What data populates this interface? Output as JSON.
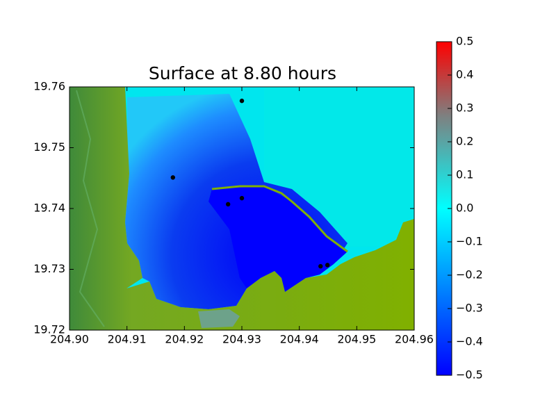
{
  "chart_data": {
    "type": "scatter",
    "title": "Surface at 8.80 hours",
    "x": [
      204.93,
      204.918,
      204.9276,
      204.93,
      204.9437,
      204.9449
    ],
    "values": [
      19.7577,
      19.7451,
      19.7407,
      19.7417,
      19.7305,
      19.7307
    ],
    "color": "#000000",
    "xlim": [
      204.9,
      204.96
    ],
    "xticks": [
      {
        "value": 204.9,
        "label": "204.90"
      },
      204.91,
      204.92,
      204.93,
      204.94,
      204.95,
      204.96
    ],
    "ylim": [
      19.72,
      19.76
    ],
    "yticks": [
      19.72,
      19.73,
      19.74,
      19.75,
      19.76
    ],
    "clim": [
      -0.5,
      0.5
    ],
    "cticks": [
      {
        "value": -0.5,
        "label": "−0.5"
      },
      {
        "value": -0.4,
        "label": "−0.4"
      },
      {
        "value": -0.3,
        "label": "−0.3"
      },
      {
        "value": -0.2,
        "label": "−0.2"
      },
      {
        "value": -0.1,
        "label": "−0.1"
      },
      {
        "value": 0,
        "label": "0.0"
      },
      0.1,
      0.2,
      0.3,
      0.4,
      0.5
    ]
  }
}
